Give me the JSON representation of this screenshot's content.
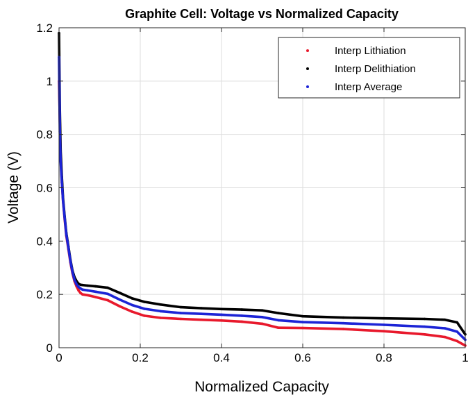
{
  "chart_data": {
    "type": "line",
    "title": "Graphite Cell: Voltage vs Normalized Capacity",
    "xlabel": "Normalized Capacity",
    "ylabel": "Voltage (V)",
    "xlim": [
      0,
      1
    ],
    "ylim": [
      0,
      1.2
    ],
    "xticks": [
      0,
      0.2,
      0.4,
      0.6,
      0.8,
      1
    ],
    "xtick_labels": [
      "0",
      "0.2",
      "0.4",
      "0.6",
      "0.8",
      "1"
    ],
    "yticks": [
      0,
      0.2,
      0.4,
      0.6,
      0.8,
      1,
      1.2
    ],
    "ytick_labels": [
      "0",
      "0.2",
      "0.4",
      "0.6",
      "0.8",
      "1",
      "1.2"
    ],
    "grid": true,
    "legend_position": "top-right",
    "series": [
      {
        "name": "Interp Lithiation",
        "color": "#e8192c",
        "marker": "dot",
        "x": [
          0.0,
          0.002,
          0.004,
          0.007,
          0.01,
          0.014,
          0.018,
          0.023,
          0.028,
          0.033,
          0.038,
          0.043,
          0.048,
          0.053,
          0.058,
          0.07,
          0.09,
          0.12,
          0.15,
          0.18,
          0.21,
          0.25,
          0.3,
          0.35,
          0.4,
          0.45,
          0.5,
          0.54,
          0.6,
          0.7,
          0.8,
          0.9,
          0.95,
          0.98,
          1.0
        ],
        "y": [
          1.0,
          0.85,
          0.72,
          0.62,
          0.55,
          0.48,
          0.42,
          0.37,
          0.32,
          0.28,
          0.25,
          0.23,
          0.215,
          0.205,
          0.2,
          0.197,
          0.19,
          0.178,
          0.155,
          0.135,
          0.12,
          0.112,
          0.108,
          0.105,
          0.102,
          0.098,
          0.09,
          0.075,
          0.074,
          0.07,
          0.062,
          0.05,
          0.04,
          0.025,
          0.008
        ]
      },
      {
        "name": "Interp Delithiation",
        "color": "#000000",
        "marker": "dot",
        "x": [
          0.0,
          0.002,
          0.004,
          0.007,
          0.01,
          0.014,
          0.018,
          0.023,
          0.028,
          0.033,
          0.038,
          0.043,
          0.048,
          0.053,
          0.058,
          0.07,
          0.09,
          0.12,
          0.15,
          0.18,
          0.21,
          0.25,
          0.3,
          0.35,
          0.4,
          0.45,
          0.5,
          0.54,
          0.6,
          0.7,
          0.8,
          0.9,
          0.95,
          0.98,
          1.0
        ],
        "y": [
          1.18,
          0.89,
          0.74,
          0.64,
          0.56,
          0.49,
          0.43,
          0.38,
          0.33,
          0.29,
          0.265,
          0.25,
          0.24,
          0.236,
          0.235,
          0.233,
          0.23,
          0.225,
          0.205,
          0.185,
          0.172,
          0.162,
          0.152,
          0.148,
          0.145,
          0.143,
          0.14,
          0.13,
          0.118,
          0.113,
          0.11,
          0.108,
          0.105,
          0.095,
          0.05
        ]
      },
      {
        "name": "Interp Average",
        "color": "#1c24d6",
        "marker": "dot",
        "x": [
          0.0,
          0.002,
          0.004,
          0.007,
          0.01,
          0.014,
          0.018,
          0.023,
          0.028,
          0.033,
          0.038,
          0.043,
          0.048,
          0.053,
          0.058,
          0.07,
          0.09,
          0.12,
          0.15,
          0.18,
          0.21,
          0.25,
          0.3,
          0.35,
          0.4,
          0.45,
          0.5,
          0.54,
          0.6,
          0.7,
          0.8,
          0.9,
          0.95,
          0.98,
          1.0
        ],
        "y": [
          1.09,
          0.81,
          0.7,
          0.62,
          0.55,
          0.485,
          0.425,
          0.375,
          0.325,
          0.285,
          0.255,
          0.238,
          0.228,
          0.222,
          0.218,
          0.215,
          0.21,
          0.202,
          0.18,
          0.16,
          0.146,
          0.137,
          0.13,
          0.127,
          0.124,
          0.12,
          0.115,
          0.103,
          0.096,
          0.092,
          0.086,
          0.079,
          0.073,
          0.06,
          0.03
        ]
      }
    ]
  }
}
